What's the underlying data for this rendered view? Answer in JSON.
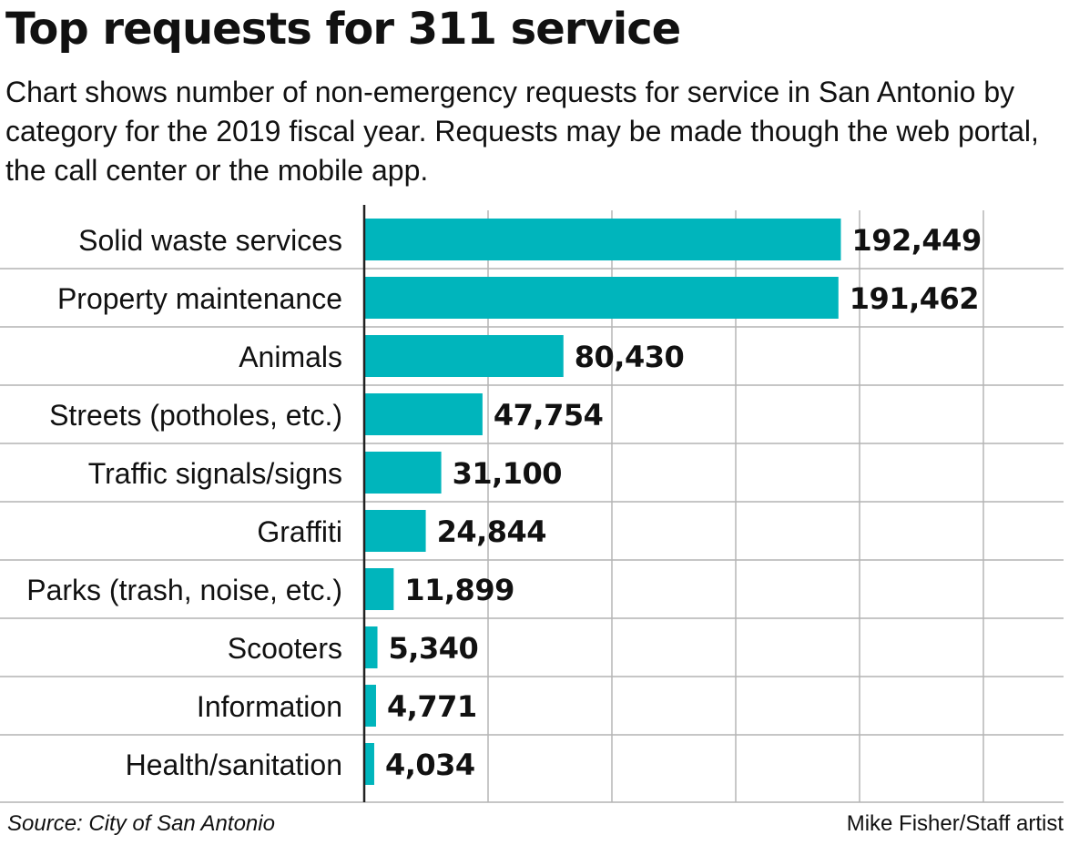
{
  "header": {
    "title": "Top requests for 311 service",
    "subtitle": "Chart shows number of non-emergency requests for service in San Antonio by category for the 2019 fiscal year. Requests may be made though the web portal, the call center or the mobile app."
  },
  "footer": {
    "source": "Source: City of San Antonio",
    "credit": "Mike Fisher/Staff artist"
  },
  "colors": {
    "bar": "#00b5bc",
    "grid": "#c8c8c8",
    "divider": "#b4b4b4",
    "axis": "#222222"
  },
  "chart_data": {
    "type": "bar",
    "orientation": "horizontal",
    "categories": [
      "Solid waste services",
      "Property maintenance",
      "Animals",
      "Streets (potholes, etc.)",
      "Traffic signals/signs",
      "Graffiti",
      "Parks (trash, noise, etc.)",
      "Scooters",
      "Information",
      "Health/sanitation"
    ],
    "values": [
      192449,
      191462,
      80430,
      47754,
      31100,
      24844,
      11899,
      5340,
      4771,
      4034
    ],
    "value_labels": [
      "192,449",
      "191,462",
      "80,430",
      "47,754",
      "31,100",
      "24,844",
      "11,899",
      "5,340",
      "4,771",
      "4,034"
    ],
    "xlim": [
      0,
      250000
    ],
    "gridlines": [
      50000,
      100000,
      150000,
      200000,
      250000
    ],
    "grid": true,
    "legend": "none"
  }
}
